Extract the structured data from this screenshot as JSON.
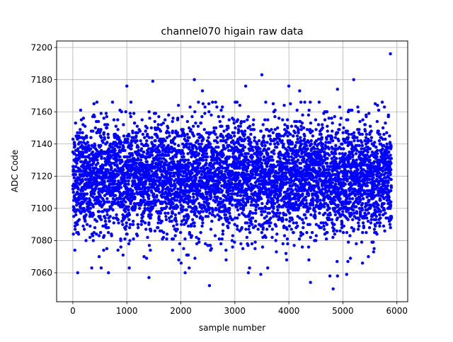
{
  "chart_data": {
    "type": "scatter",
    "title": "channel070 higain raw data",
    "xlabel": "sample number",
    "ylabel": "ADC Code",
    "xlim": [
      -300,
      6200
    ],
    "ylim": [
      7042,
      7204
    ],
    "xticks": [
      0,
      1000,
      2000,
      3000,
      4000,
      5000,
      6000
    ],
    "yticks": [
      7060,
      7080,
      7100,
      7120,
      7140,
      7160,
      7180,
      7200
    ],
    "grid": true,
    "marker_color": "#0000ff",
    "n_samples": 5900,
    "center_value": 7119,
    "spread_sd": 17,
    "outliers": [
      {
        "x": 5880,
        "y": 7196
      },
      {
        "x": 3500,
        "y": 7183
      },
      {
        "x": 2250,
        "y": 7180
      },
      {
        "x": 5200,
        "y": 7180
      },
      {
        "x": 1480,
        "y": 7179
      },
      {
        "x": 1000,
        "y": 7176
      },
      {
        "x": 3200,
        "y": 7176
      },
      {
        "x": 4000,
        "y": 7176
      },
      {
        "x": 4900,
        "y": 7174
      },
      {
        "x": 2400,
        "y": 7173
      },
      {
        "x": 4200,
        "y": 7173
      },
      {
        "x": 4820,
        "y": 7050
      },
      {
        "x": 2530,
        "y": 7052
      },
      {
        "x": 4400,
        "y": 7054
      },
      {
        "x": 1410,
        "y": 7057
      },
      {
        "x": 4760,
        "y": 7058
      },
      {
        "x": 5070,
        "y": 7059
      },
      {
        "x": 90,
        "y": 7060
      },
      {
        "x": 660,
        "y": 7060
      },
      {
        "x": 2080,
        "y": 7060
      },
      {
        "x": 3250,
        "y": 7060
      },
      {
        "x": 3480,
        "y": 7059
      },
      {
        "x": 4900,
        "y": 7058
      }
    ]
  }
}
